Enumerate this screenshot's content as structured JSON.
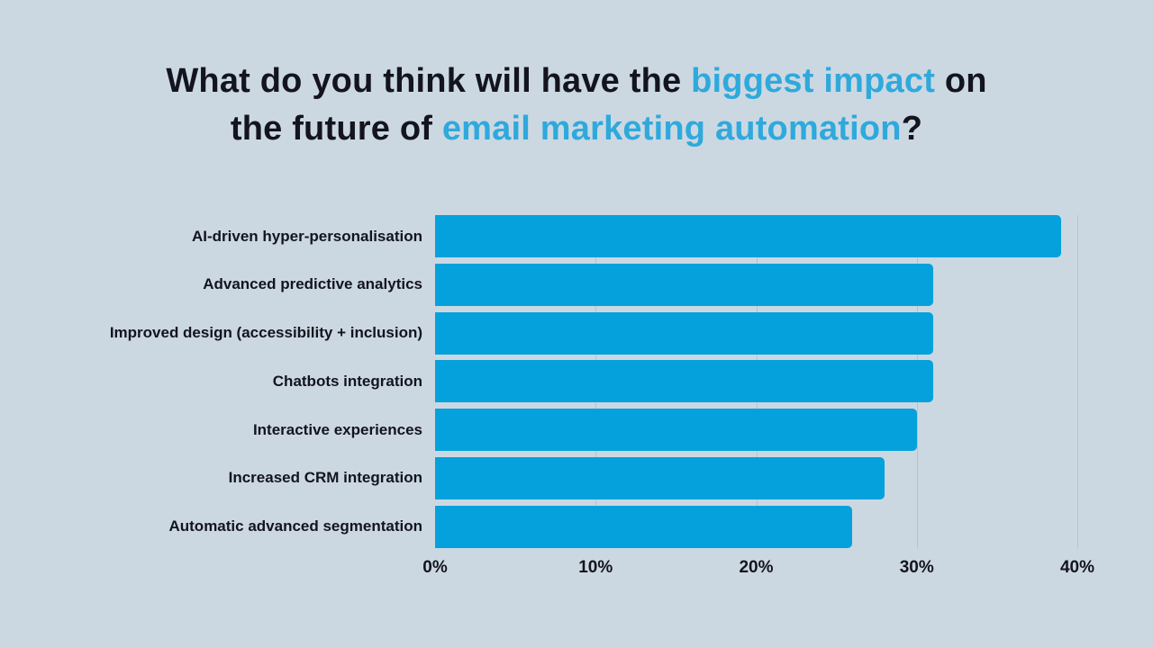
{
  "title": {
    "full_text": "What do you think will have the biggest impact on the future of email marketing automation?",
    "lines": [
      {
        "segments": [
          {
            "text": "What do you think will have the ",
            "accent": false
          },
          {
            "text": "biggest impact",
            "accent": true
          },
          {
            "text": " on",
            "accent": false
          }
        ]
      },
      {
        "segments": [
          {
            "text": "the future of ",
            "accent": false
          },
          {
            "text": "email marketing automation",
            "accent": true
          },
          {
            "text": "?",
            "accent": false
          }
        ]
      }
    ]
  },
  "colors": {
    "background": "#cbd8e2",
    "bar": "#05a1dc",
    "accent_text": "#2fa9dc",
    "text_dark": "#14141e",
    "gridline": "#b7c4d0"
  },
  "chart_data": {
    "type": "bar",
    "orientation": "horizontal",
    "title": "What do you think will have the biggest impact on the future of email marketing automation?",
    "categories": [
      "AI-driven hyper-personalisation",
      "Advanced predictive analytics",
      "Improved design (accessibility + inclusion)",
      "Chatbots integration",
      "Interactive experiences",
      "Increased CRM integration",
      "Automatic advanced segmentation"
    ],
    "values": [
      39,
      31,
      31,
      31,
      30,
      28,
      26
    ],
    "unit": "%",
    "xlabel": "",
    "ylabel": "",
    "xlim": [
      0,
      40
    ],
    "x_ticks": [
      "0%",
      "10%",
      "20%",
      "30%",
      "40%"
    ],
    "x_tick_values": [
      0,
      10,
      20,
      30,
      40
    ],
    "grid": true,
    "legend": false
  }
}
